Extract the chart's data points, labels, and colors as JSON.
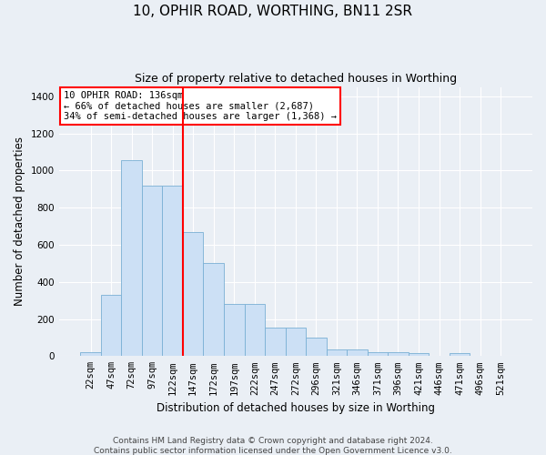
{
  "title": "10, OPHIR ROAD, WORTHING, BN11 2SR",
  "subtitle": "Size of property relative to detached houses in Worthing",
  "xlabel": "Distribution of detached houses by size in Worthing",
  "ylabel": "Number of detached properties",
  "categories": [
    "22sqm",
    "47sqm",
    "72sqm",
    "97sqm",
    "122sqm",
    "147sqm",
    "172sqm",
    "197sqm",
    "222sqm",
    "247sqm",
    "272sqm",
    "296sqm",
    "321sqm",
    "346sqm",
    "371sqm",
    "396sqm",
    "421sqm",
    "446sqm",
    "471sqm",
    "496sqm",
    "521sqm"
  ],
  "values": [
    20,
    330,
    1055,
    920,
    920,
    670,
    500,
    280,
    280,
    155,
    155,
    100,
    35,
    35,
    20,
    20,
    15,
    0,
    15,
    0,
    0
  ],
  "bar_color": "#cce0f5",
  "bar_edge_color": "#7ab0d4",
  "bar_width": 1.0,
  "vline_x_index": 4.5,
  "vline_color": "red",
  "annotation_text": "10 OPHIR ROAD: 136sqm\n← 66% of detached houses are smaller (2,687)\n34% of semi-detached houses are larger (1,368) →",
  "annotation_box_color": "white",
  "annotation_box_edge_color": "red",
  "ylim": [
    0,
    1450
  ],
  "yticks": [
    0,
    200,
    400,
    600,
    800,
    1000,
    1200,
    1400
  ],
  "bg_color": "#eaeff5",
  "plot_bg_color": "#eaeff5",
  "footer": "Contains HM Land Registry data © Crown copyright and database right 2024.\nContains public sector information licensed under the Open Government Licence v3.0.",
  "title_fontsize": 11,
  "subtitle_fontsize": 9,
  "xlabel_fontsize": 8.5,
  "ylabel_fontsize": 8.5,
  "tick_fontsize": 7.5,
  "annotation_fontsize": 7.5,
  "footer_fontsize": 6.5
}
